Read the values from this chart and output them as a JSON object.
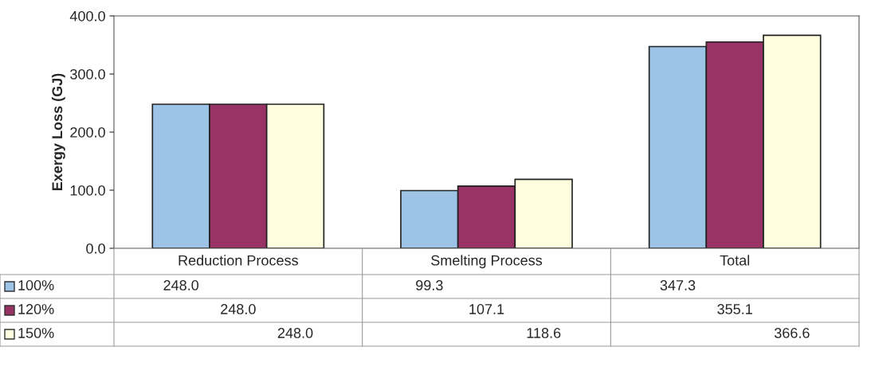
{
  "chart_data": {
    "type": "bar",
    "ylabel": "Exergy Loss (GJ)",
    "categories": [
      "Reduction Process",
      "Smelting Process",
      "Total"
    ],
    "series": [
      {
        "name": "100%",
        "color": "#9dc3e6",
        "values": [
          248.0,
          99.3,
          347.3
        ],
        "value_labels": [
          "248.0",
          "99.3",
          "347.3"
        ]
      },
      {
        "name": "120%",
        "color": "#993366",
        "values": [
          248.0,
          107.1,
          355.1
        ],
        "value_labels": [
          "248.0",
          "107.1",
          "355.1"
        ]
      },
      {
        "name": "150%",
        "color": "#ffffe0",
        "values": [
          248.0,
          118.6,
          366.6
        ],
        "value_labels": [
          "248.0",
          "118.6",
          "366.6"
        ]
      }
    ],
    "ylim": [
      0,
      400
    ],
    "yticks": [
      {
        "value": 0,
        "label": "0.0"
      },
      {
        "value": 100,
        "label": "100.0"
      },
      {
        "value": 200,
        "label": "200.0"
      },
      {
        "value": 300,
        "label": "300.0"
      },
      {
        "value": 400,
        "label": "400.0"
      }
    ],
    "legend": "bottom left",
    "grid": false
  }
}
